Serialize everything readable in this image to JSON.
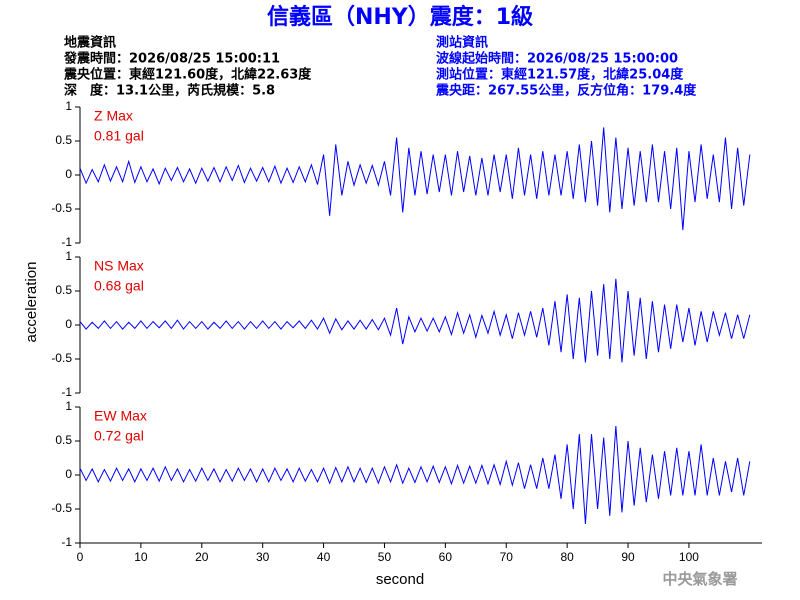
{
  "title": "信義區（NHY）震度：1級",
  "earthquake_info": [
    "地震資訊",
    "發震時間：2026/08/25 15:00:11",
    "震央位置：東經121.60度，北緯22.63度",
    "深　度：13.1公里，芮氏規模：5.8"
  ],
  "station_info": [
    "測站資訊",
    "波線起始時間：2026/08/25 15:00:00",
    "測站位置：東經121.57度，北緯25.04度",
    "震央距：267.55公里，反方位角：179.4度"
  ],
  "ylabel": "acceleration",
  "xlabel": "second",
  "agency": "中央氣象署",
  "chart_data": [
    {
      "type": "line",
      "annotation": [
        "Z Max",
        "0.81 gal"
      ],
      "x": [
        0,
        1,
        2,
        3,
        4,
        5,
        6,
        7,
        8,
        9,
        10,
        11,
        12,
        13,
        14,
        15,
        16,
        17,
        18,
        19,
        20,
        21,
        22,
        23,
        24,
        25,
        26,
        27,
        28,
        29,
        30,
        31,
        32,
        33,
        34,
        35,
        36,
        37,
        38,
        39,
        40,
        41,
        42,
        43,
        44,
        45,
        46,
        47,
        48,
        49,
        50,
        51,
        52,
        53,
        54,
        55,
        56,
        57,
        58,
        59,
        60,
        61,
        62,
        63,
        64,
        65,
        66,
        67,
        68,
        69,
        70,
        71,
        72,
        73,
        74,
        75,
        76,
        77,
        78,
        79,
        80,
        81,
        82,
        83,
        84,
        85,
        86,
        87,
        88,
        89,
        90,
        91,
        92,
        93,
        94,
        95,
        96,
        97,
        98,
        99,
        100,
        101,
        102,
        103,
        104,
        105,
        106,
        107,
        108,
        109,
        110
      ],
      "series": [
        {
          "color": "#0000ff",
          "values": [
            0.1,
            -0.12,
            0.08,
            -0.1,
            0.15,
            -0.09,
            0.12,
            -0.1,
            0.2,
            -0.11,
            0.12,
            -0.1,
            0.09,
            -0.13,
            0.1,
            -0.08,
            0.11,
            -0.1,
            0.09,
            -0.12,
            0.1,
            -0.09,
            0.11,
            -0.1,
            0.12,
            -0.08,
            0.14,
            -0.11,
            0.1,
            -0.09,
            0.11,
            -0.1,
            0.13,
            -0.12,
            0.1,
            -0.11,
            0.12,
            -0.1,
            0.15,
            -0.14,
            0.3,
            -0.6,
            0.45,
            -0.3,
            0.2,
            -0.15,
            0.15,
            -0.12,
            0.14,
            -0.15,
            0.2,
            -0.3,
            0.55,
            -0.55,
            0.4,
            -0.3,
            0.35,
            -0.28,
            0.3,
            -0.25,
            0.3,
            -0.3,
            0.35,
            -0.25,
            0.28,
            -0.3,
            0.25,
            -0.3,
            0.3,
            -0.25,
            0.3,
            -0.35,
            0.4,
            -0.3,
            0.3,
            -0.35,
            0.35,
            -0.3,
            0.3,
            -0.3,
            0.35,
            -0.35,
            0.45,
            -0.4,
            0.5,
            -0.45,
            0.7,
            -0.55,
            0.55,
            -0.5,
            0.4,
            -0.45,
            0.35,
            -0.4,
            0.45,
            -0.4,
            0.35,
            -0.5,
            0.4,
            -0.81,
            0.35,
            -0.4,
            0.45,
            -0.35,
            0.3,
            -0.4,
            0.55,
            -0.5,
            0.4,
            -0.45,
            0.3
          ]
        }
      ],
      "xlim": [
        0,
        112
      ],
      "ylim": [
        -1,
        1
      ],
      "yticks": [
        -1,
        -0.5,
        0,
        0.5,
        1
      ]
    },
    {
      "type": "line",
      "annotation": [
        "NS Max",
        "0.68 gal"
      ],
      "x": [
        0,
        1,
        2,
        3,
        4,
        5,
        6,
        7,
        8,
        9,
        10,
        11,
        12,
        13,
        14,
        15,
        16,
        17,
        18,
        19,
        20,
        21,
        22,
        23,
        24,
        25,
        26,
        27,
        28,
        29,
        30,
        31,
        32,
        33,
        34,
        35,
        36,
        37,
        38,
        39,
        40,
        41,
        42,
        43,
        44,
        45,
        46,
        47,
        48,
        49,
        50,
        51,
        52,
        53,
        54,
        55,
        56,
        57,
        58,
        59,
        60,
        61,
        62,
        63,
        64,
        65,
        66,
        67,
        68,
        69,
        70,
        71,
        72,
        73,
        74,
        75,
        76,
        77,
        78,
        79,
        80,
        81,
        82,
        83,
        84,
        85,
        86,
        87,
        88,
        89,
        90,
        91,
        92,
        93,
        94,
        95,
        96,
        97,
        98,
        99,
        100,
        101,
        102,
        103,
        104,
        105,
        106,
        107,
        108,
        109,
        110
      ],
      "series": [
        {
          "color": "#0000ff",
          "values": [
            0.05,
            -0.06,
            0.04,
            -0.05,
            0.06,
            -0.05,
            0.05,
            -0.06,
            0.04,
            -0.05,
            0.06,
            -0.05,
            0.05,
            -0.04,
            0.06,
            -0.05,
            0.07,
            -0.06,
            0.05,
            -0.05,
            0.05,
            -0.06,
            0.04,
            -0.05,
            0.06,
            -0.05,
            0.05,
            -0.06,
            0.05,
            -0.05,
            0.06,
            -0.05,
            0.05,
            -0.06,
            0.05,
            -0.04,
            0.06,
            -0.05,
            0.07,
            -0.06,
            0.1,
            -0.12,
            0.09,
            -0.07,
            0.06,
            -0.06,
            0.07,
            -0.06,
            0.08,
            -0.07,
            0.1,
            -0.15,
            0.25,
            -0.28,
            0.12,
            -0.1,
            0.1,
            -0.09,
            0.1,
            -0.1,
            0.12,
            -0.14,
            0.18,
            -0.12,
            0.15,
            -0.18,
            0.14,
            -0.12,
            0.2,
            -0.15,
            0.15,
            -0.2,
            0.18,
            -0.15,
            0.2,
            -0.18,
            0.25,
            -0.3,
            0.35,
            -0.4,
            0.45,
            -0.5,
            0.4,
            -0.55,
            0.5,
            -0.45,
            0.6,
            -0.5,
            0.68,
            -0.55,
            0.5,
            -0.45,
            0.4,
            -0.5,
            0.35,
            -0.4,
            0.3,
            -0.35,
            0.3,
            -0.25,
            0.25,
            -0.3,
            0.2,
            -0.25,
            0.2,
            -0.15,
            0.18,
            -0.2,
            0.15,
            -0.2,
            0.15
          ]
        }
      ],
      "xlim": [
        0,
        112
      ],
      "ylim": [
        -1,
        1
      ],
      "yticks": [
        -1,
        -0.5,
        0,
        0.5,
        1
      ]
    },
    {
      "type": "line",
      "annotation": [
        "EW Max",
        "0.72 gal"
      ],
      "x": [
        0,
        1,
        2,
        3,
        4,
        5,
        6,
        7,
        8,
        9,
        10,
        11,
        12,
        13,
        14,
        15,
        16,
        17,
        18,
        19,
        20,
        21,
        22,
        23,
        24,
        25,
        26,
        27,
        28,
        29,
        30,
        31,
        32,
        33,
        34,
        35,
        36,
        37,
        38,
        39,
        40,
        41,
        42,
        43,
        44,
        45,
        46,
        47,
        48,
        49,
        50,
        51,
        52,
        53,
        54,
        55,
        56,
        57,
        58,
        59,
        60,
        61,
        62,
        63,
        64,
        65,
        66,
        67,
        68,
        69,
        70,
        71,
        72,
        73,
        74,
        75,
        76,
        77,
        78,
        79,
        80,
        81,
        82,
        83,
        84,
        85,
        86,
        87,
        88,
        89,
        90,
        91,
        92,
        93,
        94,
        95,
        96,
        97,
        98,
        99,
        100,
        101,
        102,
        103,
        104,
        105,
        106,
        107,
        108,
        109,
        110
      ],
      "series": [
        {
          "color": "#0000ff",
          "values": [
            0.1,
            -0.08,
            0.09,
            -0.1,
            0.08,
            -0.09,
            0.1,
            -0.08,
            0.09,
            -0.1,
            0.09,
            -0.08,
            0.1,
            -0.09,
            0.12,
            -0.08,
            0.09,
            -0.1,
            0.08,
            -0.09,
            0.1,
            -0.08,
            0.09,
            -0.1,
            0.08,
            -0.09,
            0.1,
            -0.08,
            0.09,
            -0.1,
            0.09,
            -0.1,
            0.1,
            -0.08,
            0.09,
            -0.1,
            0.1,
            -0.09,
            0.08,
            -0.1,
            0.1,
            -0.12,
            0.11,
            -0.1,
            0.12,
            -0.1,
            0.1,
            -0.11,
            0.1,
            -0.12,
            0.12,
            -0.1,
            0.15,
            -0.12,
            0.1,
            -0.11,
            0.12,
            -0.1,
            0.13,
            -0.11,
            0.12,
            -0.13,
            0.14,
            -0.12,
            0.13,
            -0.12,
            0.14,
            -0.13,
            0.15,
            -0.14,
            0.2,
            -0.15,
            0.18,
            -0.2,
            0.15,
            -0.2,
            0.25,
            -0.2,
            0.3,
            -0.35,
            0.45,
            -0.5,
            0.6,
            -0.72,
            0.6,
            -0.5,
            0.55,
            -0.6,
            0.72,
            -0.55,
            0.5,
            -0.45,
            0.4,
            -0.4,
            0.3,
            -0.35,
            0.35,
            -0.3,
            0.4,
            -0.3,
            0.35,
            -0.3,
            0.45,
            -0.3,
            0.25,
            -0.3,
            0.2,
            -0.25,
            0.25,
            -0.3,
            0.2
          ]
        }
      ],
      "xlim": [
        0,
        112
      ],
      "ylim": [
        -1,
        1
      ],
      "yticks": [
        -1,
        -0.5,
        0,
        0.5,
        1
      ],
      "xticks": [
        0,
        10,
        20,
        30,
        40,
        50,
        60,
        70,
        80,
        90,
        100
      ]
    }
  ]
}
